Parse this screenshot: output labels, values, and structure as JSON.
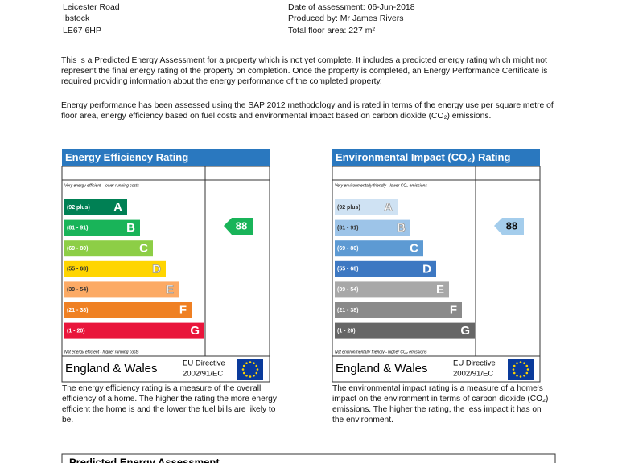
{
  "address": [
    "Leicester Road",
    "Ibstock",
    "LE67 6HP"
  ],
  "details": [
    "Date of assessment: 06-Jun-2018",
    "Produced by: Mr James Rivers",
    "Total floor area: 227 m²"
  ],
  "paragraphs": [
    "This is a Predicted Energy Assessment for a property which is not yet complete. It includes a predicted energy rating which might not represent the final energy rating of the property on completion. Once the property is completed, an Energy Performance Certificate is required providing information about the energy performance of the completed property.",
    "Energy performance has been assessed using the SAP 2012 methodology and is rated in terms of the energy use per square metre of floor area, energy efficiency based on fuel costs and environmental impact based on carbon dioxide (CO₂) emissions."
  ],
  "charts": [
    {
      "title": "Energy Efficiency Rating",
      "top_note": "Very energy efficient - lower running costs",
      "bottom_note": "Not energy efficient - higher running costs",
      "bands": [
        {
          "range": "(92 plus)",
          "letter": "A"
        },
        {
          "range": "(81 - 91)",
          "letter": "B"
        },
        {
          "range": "(69 - 80)",
          "letter": "C"
        },
        {
          "range": "(55 - 68)",
          "letter": "D"
        },
        {
          "range": "(39 - 54)",
          "letter": "E"
        },
        {
          "range": "(21 - 38)",
          "letter": "F"
        },
        {
          "range": "(1 - 20)",
          "letter": "G"
        }
      ],
      "rating": 88,
      "region": "England & Wales",
      "directive": [
        "EU Directive",
        "2002/91/EC"
      ],
      "description": "The energy efficiency rating is a measure of the overall efficiency of a home. The higher the rating the more energy efficient the home is and the lower the fuel bills are likely to be."
    },
    {
      "title": "Environmental Impact (CO₂) Rating",
      "top_note": "Very environmentally friendly - lower CO₂ emissions",
      "bottom_note": "Not environmentally friendly - higher CO₂ emissions",
      "bands": [
        {
          "range": "(92 plus)",
          "letter": "A"
        },
        {
          "range": "(81 - 91)",
          "letter": "B"
        },
        {
          "range": "(69 - 80)",
          "letter": "C"
        },
        {
          "range": "(55 - 68)",
          "letter": "D"
        },
        {
          "range": "(39 - 54)",
          "letter": "E"
        },
        {
          "range": "(21 - 38)",
          "letter": "F"
        },
        {
          "range": "(1 - 20)",
          "letter": "G"
        }
      ],
      "rating": 88,
      "region": "England & Wales",
      "directive": [
        "EU Directive",
        "2002/91/EC"
      ],
      "description": "The environmental impact rating is a measure of a home's impact on the environment in terms of carbon dioxide (CO₂) emissions. The higher the rating, the less impact it has on the environment."
    }
  ],
  "next_section": "Predicted Energy Assessment"
}
